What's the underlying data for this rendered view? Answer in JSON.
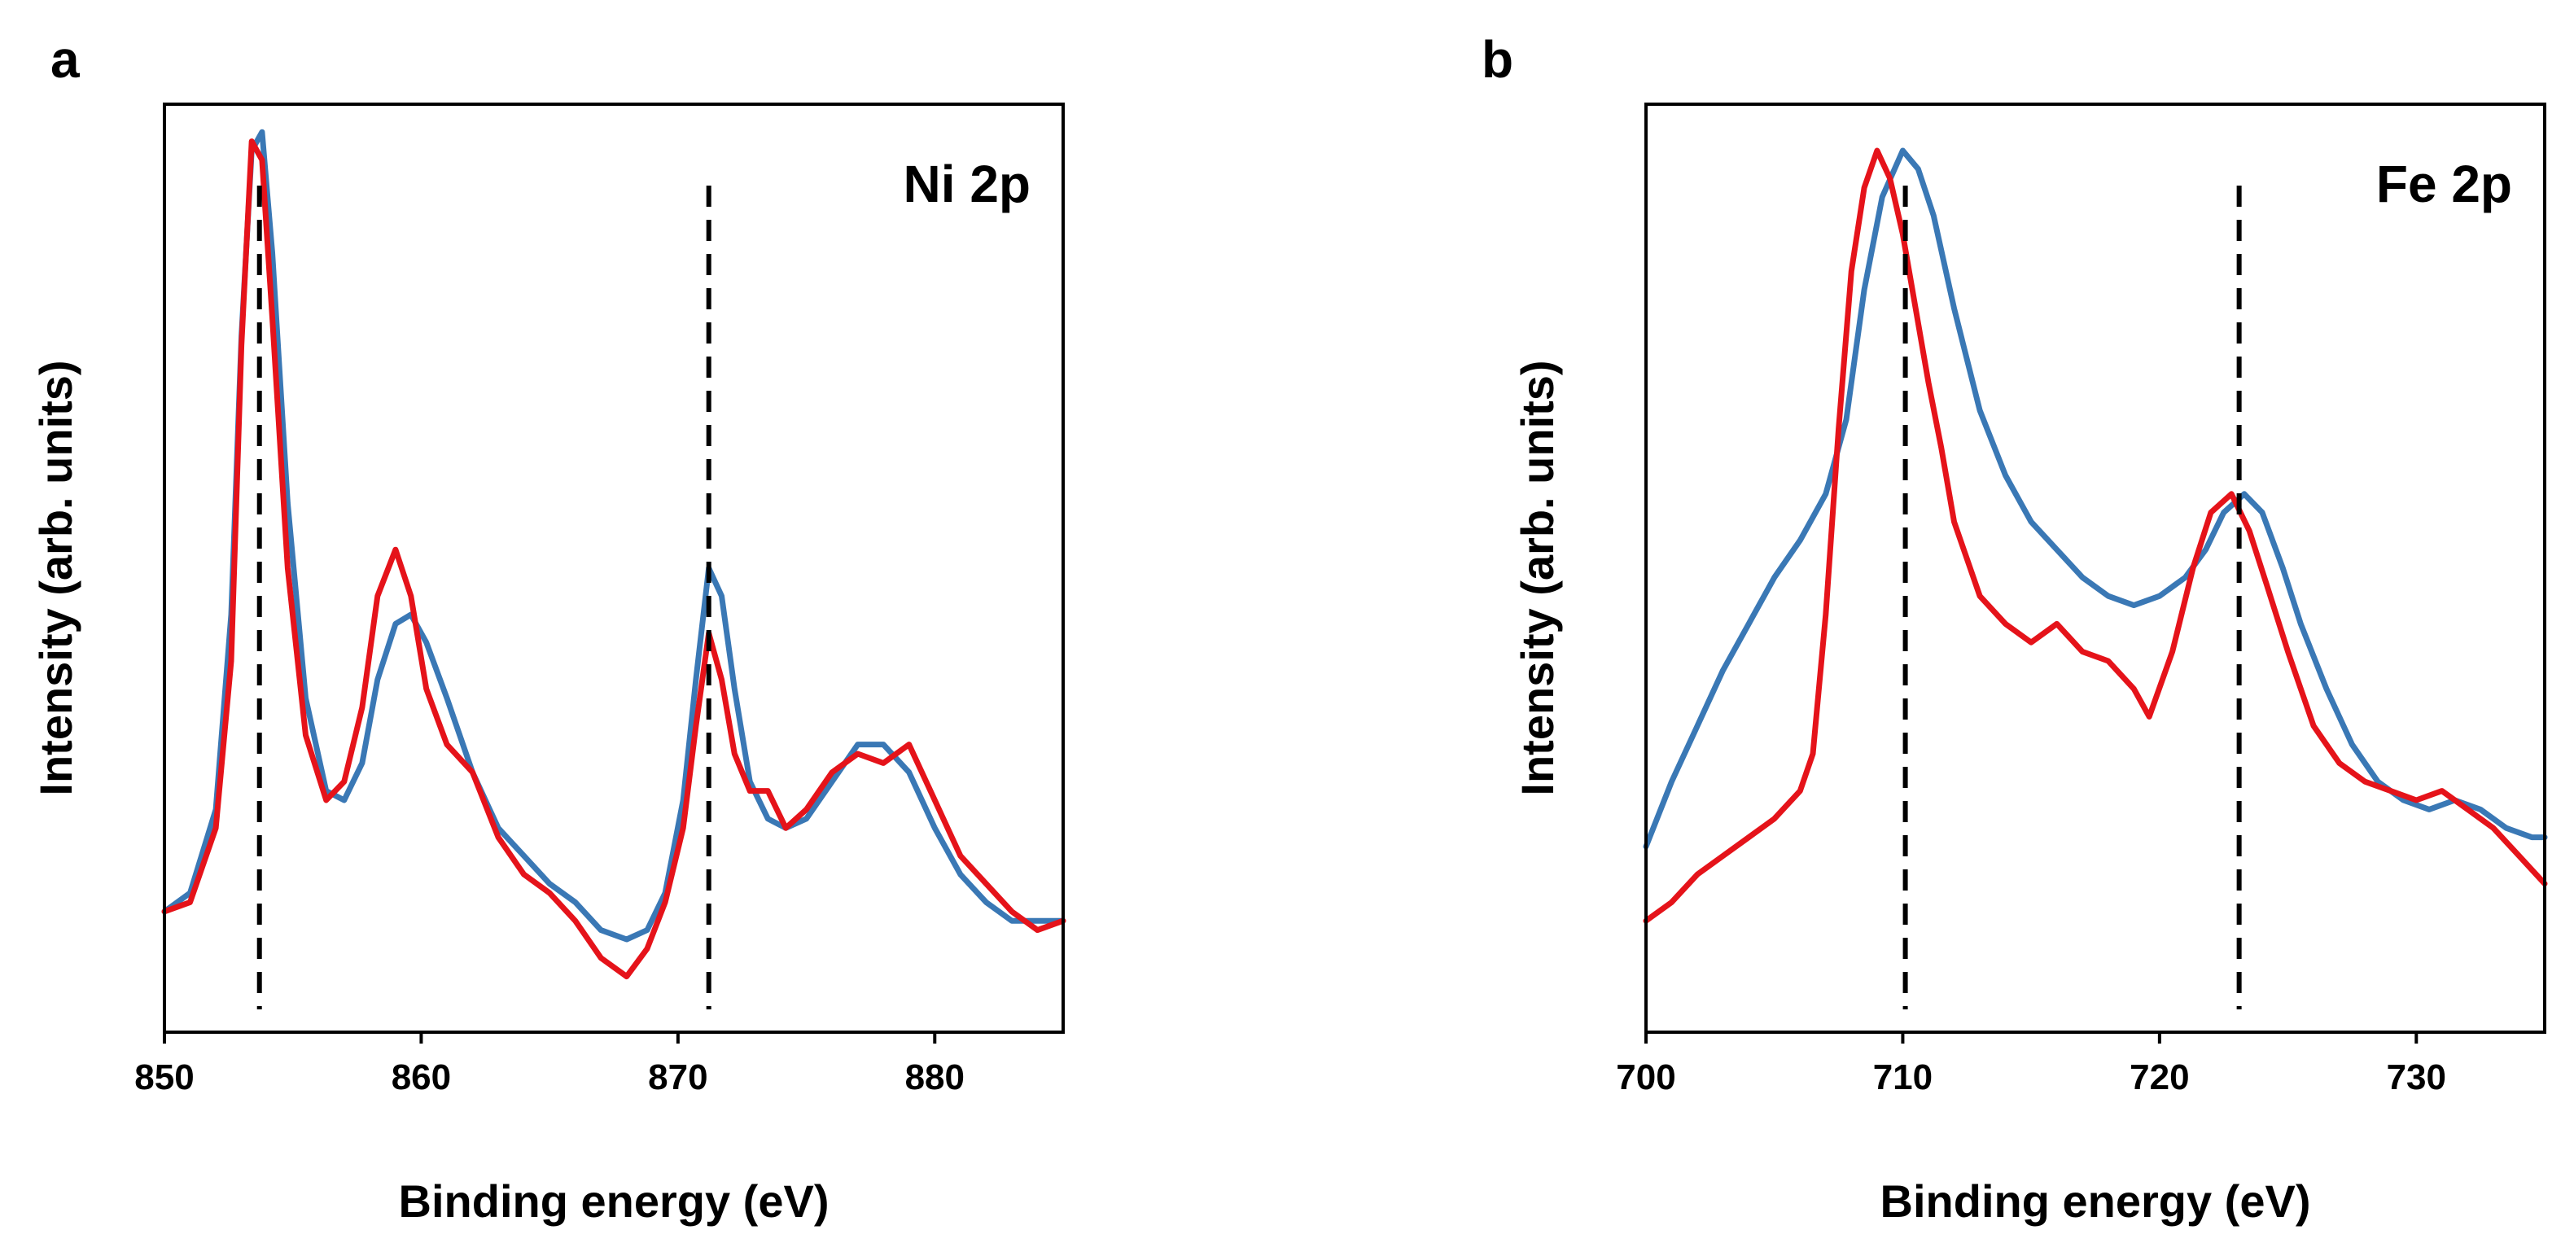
{
  "chart_data": [
    {
      "type": "line",
      "panel_label": "a",
      "title": "Ni 2p",
      "xlabel": "Binding energy (eV)",
      "ylabel": "Intensity (arb. units)",
      "xlim": [
        850,
        885
      ],
      "ylim": [
        0,
        1
      ],
      "xticks": [
        850,
        860,
        870,
        880
      ],
      "y_ticks_shown": false,
      "reference_lines_x": [
        853.7,
        871.2
      ],
      "colors": {
        "series_1": "#3a78b5",
        "series_2": "#e5131a",
        "reference": "#000000"
      },
      "series": [
        {
          "color": "#3a78b5",
          "x": [
            850,
            851,
            852,
            852.6,
            853.0,
            853.4,
            853.8,
            854.2,
            854.8,
            855.5,
            856.3,
            857.0,
            857.7,
            858.3,
            859.0,
            859.6,
            860.2,
            861.0,
            862.0,
            863.0,
            864.0,
            865.0,
            866.0,
            867.0,
            868.0,
            868.8,
            869.5,
            870.2,
            870.7,
            871.2,
            871.7,
            872.2,
            872.8,
            873.5,
            874.2,
            875.0,
            876.0,
            877.0,
            878.0,
            879.0,
            880.0,
            881.0,
            882.0,
            883.0,
            884.0,
            885.0
          ],
          "y": [
            0.13,
            0.15,
            0.24,
            0.45,
            0.75,
            0.95,
            0.97,
            0.84,
            0.57,
            0.36,
            0.26,
            0.25,
            0.29,
            0.38,
            0.44,
            0.45,
            0.42,
            0.36,
            0.28,
            0.22,
            0.19,
            0.16,
            0.14,
            0.11,
            0.1,
            0.11,
            0.15,
            0.25,
            0.38,
            0.5,
            0.47,
            0.37,
            0.27,
            0.23,
            0.22,
            0.23,
            0.27,
            0.31,
            0.31,
            0.28,
            0.22,
            0.17,
            0.14,
            0.12,
            0.12,
            0.12
          ]
        },
        {
          "color": "#e5131a",
          "x": [
            850,
            851,
            852,
            852.6,
            853.0,
            853.4,
            853.8,
            854.2,
            854.8,
            855.5,
            856.3,
            857.0,
            857.7,
            858.3,
            859.0,
            859.6,
            860.2,
            861.0,
            862.0,
            863.0,
            864.0,
            865.0,
            866.0,
            867.0,
            868.0,
            868.8,
            869.5,
            870.2,
            870.7,
            871.2,
            871.7,
            872.2,
            872.8,
            873.5,
            874.2,
            875.0,
            876.0,
            877.0,
            878.0,
            879.0,
            880.0,
            881.0,
            882.0,
            883.0,
            884.0,
            885.0
          ],
          "y": [
            0.13,
            0.14,
            0.22,
            0.4,
            0.74,
            0.96,
            0.94,
            0.77,
            0.5,
            0.32,
            0.25,
            0.27,
            0.35,
            0.47,
            0.52,
            0.47,
            0.37,
            0.31,
            0.28,
            0.21,
            0.17,
            0.15,
            0.12,
            0.08,
            0.06,
            0.09,
            0.14,
            0.22,
            0.33,
            0.43,
            0.38,
            0.3,
            0.26,
            0.26,
            0.22,
            0.24,
            0.28,
            0.3,
            0.29,
            0.31,
            0.25,
            0.19,
            0.16,
            0.13,
            0.11,
            0.12
          ]
        }
      ]
    },
    {
      "type": "line",
      "panel_label": "b",
      "title": "Fe 2p",
      "xlabel": "Binding energy (eV)",
      "ylabel": "Intensity (arb. units)",
      "xlim": [
        700,
        735
      ],
      "ylim": [
        0,
        1
      ],
      "xticks": [
        700,
        710,
        720,
        730
      ],
      "y_ticks_shown": false,
      "reference_lines_x": [
        710.1,
        723.1
      ],
      "colors": {
        "series_1": "#3a78b5",
        "series_2": "#e5131a",
        "reference": "#000000"
      },
      "series": [
        {
          "color": "#3a78b5",
          "x": [
            700,
            701,
            702,
            703,
            704,
            705,
            706,
            707,
            707.8,
            708.5,
            709.2,
            710.0,
            710.6,
            711.2,
            712.0,
            713.0,
            714.0,
            715.0,
            716.0,
            717.0,
            718.0,
            719.0,
            720.0,
            721.0,
            721.8,
            722.5,
            723.3,
            724.0,
            724.8,
            725.5,
            726.5,
            727.5,
            728.5,
            729.5,
            730.5,
            731.5,
            732.5,
            733.5,
            734.5,
            735.0
          ],
          "y": [
            0.2,
            0.27,
            0.33,
            0.39,
            0.44,
            0.49,
            0.53,
            0.58,
            0.66,
            0.8,
            0.9,
            0.95,
            0.93,
            0.88,
            0.78,
            0.67,
            0.6,
            0.55,
            0.52,
            0.49,
            0.47,
            0.46,
            0.47,
            0.49,
            0.52,
            0.56,
            0.58,
            0.56,
            0.5,
            0.44,
            0.37,
            0.31,
            0.27,
            0.25,
            0.24,
            0.25,
            0.24,
            0.22,
            0.21,
            0.21
          ]
        },
        {
          "color": "#e5131a",
          "x": [
            700,
            701,
            702,
            703,
            704,
            705,
            706,
            706.5,
            707.0,
            707.5,
            708.0,
            708.5,
            709.0,
            709.5,
            710.0,
            710.5,
            711.0,
            711.5,
            712.0,
            713.0,
            714.0,
            715.0,
            716.0,
            717.0,
            718.0,
            719.0,
            719.6,
            720.5,
            721.3,
            722.0,
            722.8,
            723.5,
            724.2,
            725.0,
            726.0,
            727.0,
            728.0,
            729.0,
            730.0,
            731.0,
            732.0,
            733.0,
            734.0,
            735.0
          ],
          "y": [
            0.12,
            0.14,
            0.17,
            0.19,
            0.21,
            0.23,
            0.26,
            0.3,
            0.45,
            0.65,
            0.82,
            0.91,
            0.95,
            0.92,
            0.86,
            0.78,
            0.7,
            0.63,
            0.55,
            0.47,
            0.44,
            0.42,
            0.44,
            0.41,
            0.4,
            0.37,
            0.34,
            0.41,
            0.5,
            0.56,
            0.58,
            0.54,
            0.48,
            0.41,
            0.33,
            0.29,
            0.27,
            0.26,
            0.25,
            0.26,
            0.24,
            0.22,
            0.19,
            0.16
          ]
        }
      ]
    }
  ]
}
